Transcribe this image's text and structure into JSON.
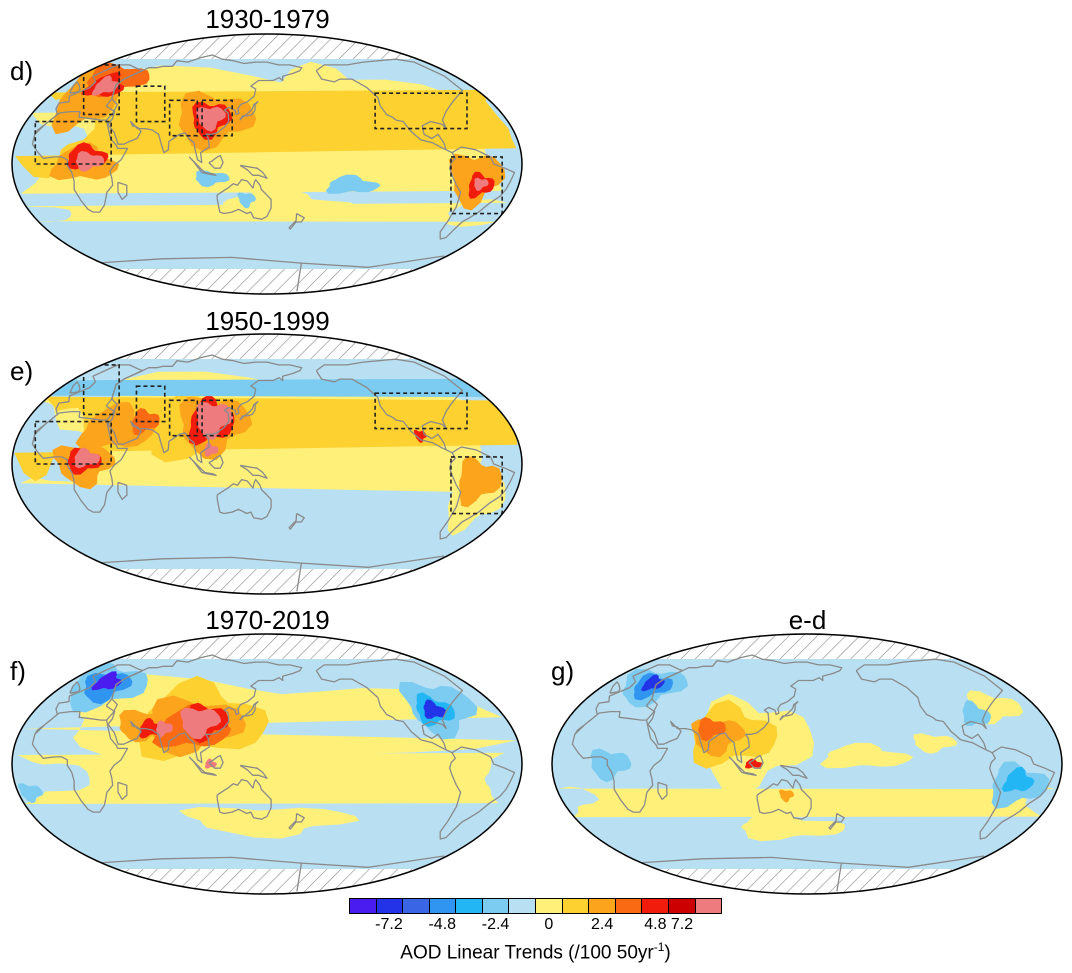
{
  "panels": [
    {
      "id": "d",
      "letter": "d)",
      "title": "1930-1979",
      "pattern": "early",
      "boxes": true
    },
    {
      "id": "e",
      "letter": "e)",
      "title": "1950-1999",
      "pattern": "mid",
      "boxes": true
    },
    {
      "id": "f",
      "letter": "f)",
      "title": "1970-2019",
      "pattern": "late",
      "boxes": false
    },
    {
      "id": "g",
      "letter": "g)",
      "title": "e-d",
      "pattern": "diff",
      "boxes": false
    }
  ],
  "colorbar": {
    "colors": [
      "#4b1cf0",
      "#2233e8",
      "#3a66e6",
      "#2f95f0",
      "#22b6f4",
      "#7ccbf0",
      "#b8e0f2",
      "#fff07a",
      "#fcd130",
      "#fca41c",
      "#fa6a12",
      "#f21c0c",
      "#cc0000",
      "#ee7b7d"
    ],
    "tick_labels": [
      "-7.2",
      "-4.8",
      "-2.4",
      "0",
      "2.4",
      "4.8",
      "7.2"
    ],
    "label_main": "AOD Linear Trends (/100 50yr",
    "label_sup": "-1",
    "label_end": ")"
  },
  "palette": {
    "land_line": "#8a8a8a",
    "box_line": "#222222",
    "hatch": "#8a8a8a",
    "ocean_neg": "#b8e0f2",
    "pos_light": "#fff07a"
  }
}
